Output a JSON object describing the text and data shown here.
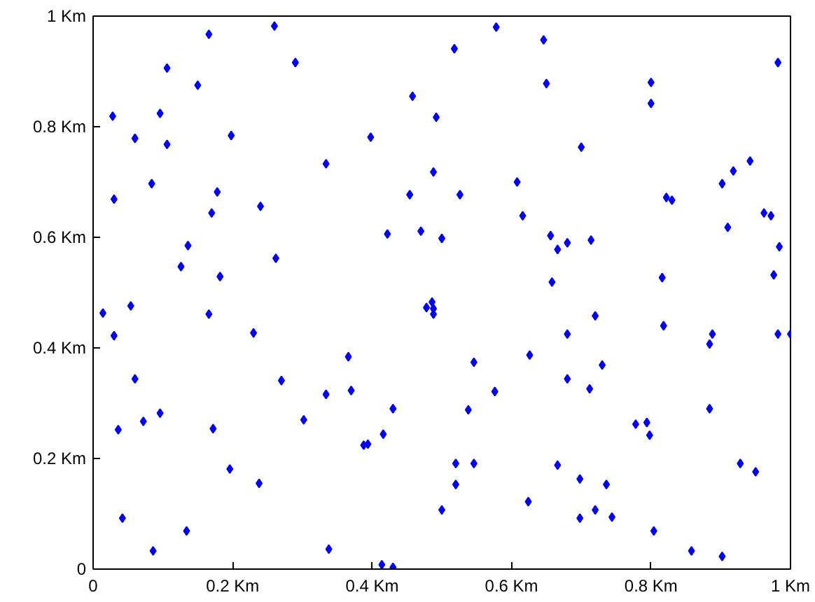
{
  "chart_data": {
    "type": "scatter",
    "marker": "diamond",
    "grid": false,
    "x": [
      0.028,
      0.03,
      0.06,
      0.084,
      0.096,
      0.106,
      0.106,
      0.126,
      0.136,
      0.15,
      0.166,
      0.17,
      0.178,
      0.182,
      0.198,
      0.24,
      0.26,
      0.262,
      0.29,
      0.334,
      0.398,
      0.422,
      0.454,
      0.458,
      0.47,
      0.488,
      0.492,
      0.5,
      0.578,
      0.518,
      0.646,
      0.982,
      0.65,
      0.8,
      0.8,
      0.7,
      0.942,
      0.918,
      0.902,
      0.608,
      0.526,
      0.822,
      0.83,
      0.962,
      0.972,
      0.616,
      0.91,
      0.656,
      0.666,
      0.68,
      0.714,
      0.984,
      0.658,
      0.816,
      0.976,
      0.014,
      0.054,
      0.03,
      0.166,
      0.23,
      0.478,
      0.486,
      0.488,
      0.488,
      0.366,
      0.06,
      0.27,
      0.334,
      0.37,
      0.096,
      0.072,
      0.43,
      0.036,
      0.172,
      0.302,
      0.416,
      0.388,
      0.394,
      0.196,
      0.238,
      0.5,
      0.042,
      0.134,
      0.086,
      0.338,
      0.414,
      0.43,
      0.72,
      0.818,
      0.68,
      0.888,
      0.884,
      0.982,
      1.0,
      0.626,
      0.546,
      0.73,
      0.68,
      0.576,
      0.712,
      0.538,
      0.884,
      0.778,
      0.794,
      0.798,
      0.52,
      0.546,
      0.666,
      0.928,
      0.95,
      0.698,
      0.736,
      0.52,
      0.624,
      0.72,
      0.698,
      0.744,
      0.804,
      0.858,
      0.902
    ],
    "series": [
      {
        "color": "#0000ff",
        "values": [
          0.819,
          0.669,
          0.779,
          0.697,
          0.824,
          0.906,
          0.768,
          0.547,
          0.585,
          0.875,
          0.967,
          0.644,
          0.682,
          0.529,
          0.784,
          0.656,
          0.982,
          0.562,
          0.916,
          0.733,
          0.781,
          0.606,
          0.677,
          0.855,
          0.611,
          0.718,
          0.817,
          0.598,
          0.98,
          0.941,
          0.957,
          0.916,
          0.878,
          0.88,
          0.842,
          0.763,
          0.738,
          0.72,
          0.697,
          0.7,
          0.677,
          0.672,
          0.667,
          0.644,
          0.639,
          0.639,
          0.618,
          0.603,
          0.578,
          0.59,
          0.595,
          0.583,
          0.519,
          0.527,
          0.532,
          0.463,
          0.476,
          0.422,
          0.461,
          0.427,
          0.473,
          0.483,
          0.471,
          0.461,
          0.384,
          0.344,
          0.341,
          0.316,
          0.323,
          0.282,
          0.267,
          0.29,
          0.252,
          0.254,
          0.27,
          0.244,
          0.224,
          0.226,
          0.181,
          0.155,
          0.107,
          0.092,
          0.069,
          0.033,
          0.036,
          0.008,
          0.003,
          0.458,
          0.44,
          0.425,
          0.425,
          0.407,
          0.425,
          0.425,
          0.387,
          0.374,
          0.369,
          0.344,
          0.321,
          0.326,
          0.288,
          0.29,
          0.262,
          0.265,
          0.242,
          0.191,
          0.191,
          0.188,
          0.191,
          0.176,
          0.163,
          0.153,
          0.153,
          0.122,
          0.107,
          0.092,
          0.094,
          0.069,
          0.033,
          0.023
        ]
      }
    ],
    "xlim": [
      0,
      1
    ],
    "ylim": [
      0,
      1
    ],
    "xticks": [
      0,
      {
        "value": 0.2,
        "label": "0.2 Km"
      },
      {
        "value": 0.4,
        "label": "0.4 Km"
      },
      {
        "value": 0.6,
        "label": "0.6 Km"
      },
      {
        "value": 0.8,
        "label": "0.8 Km"
      },
      {
        "value": 1,
        "label": "1 Km"
      }
    ],
    "yticks": [
      0,
      {
        "value": 0.2,
        "label": "0.2 Km"
      },
      {
        "value": 0.4,
        "label": "0.4 Km"
      },
      {
        "value": 0.6,
        "label": "0.6 Km"
      },
      {
        "value": 0.8,
        "label": "0.8 Km"
      },
      {
        "value": 1,
        "label": "1 Km"
      }
    ]
  }
}
